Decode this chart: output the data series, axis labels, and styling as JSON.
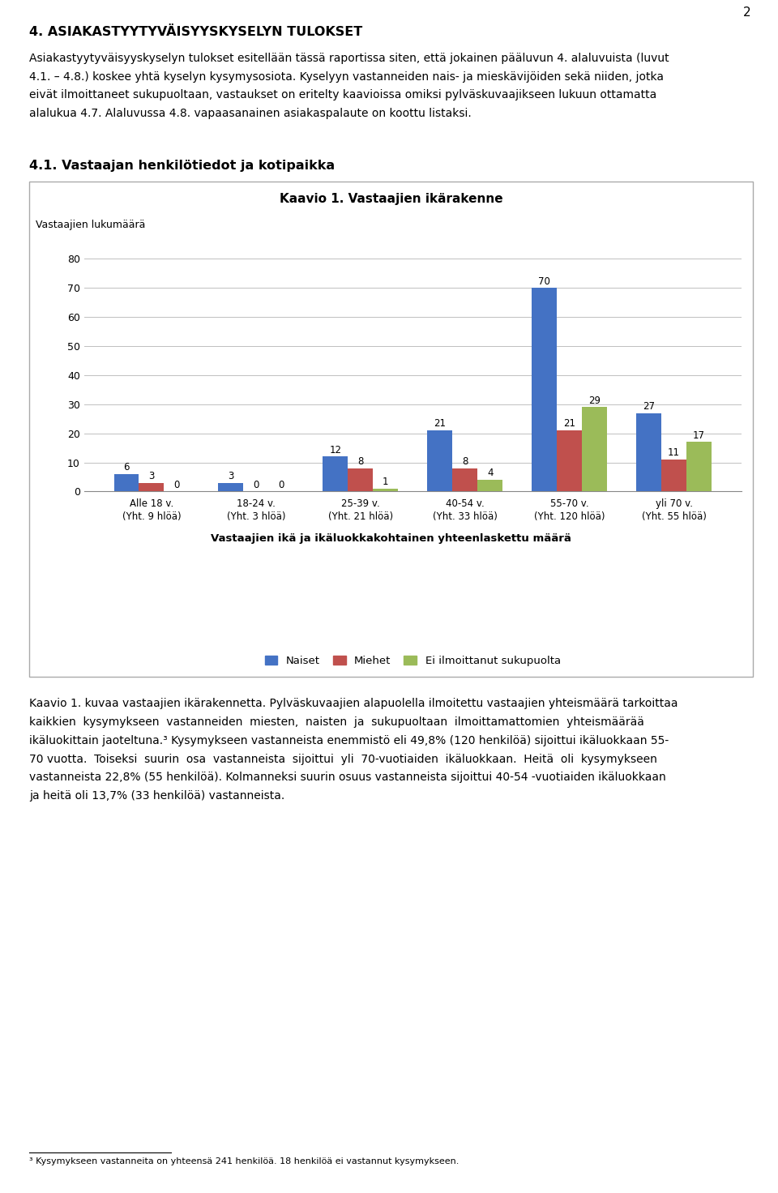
{
  "page_number": "2",
  "heading1": "4. ASIAKASTYYTYVÄISYYSKYSELYN TULOKSET",
  "para1_lines": [
    "Asiakastyytyväisyyskyselyn tulokset esitellään tässä raportissa siten, että jokainen pääluvun 4. alaluvuista (luvut",
    "4.1. – 4.8.) koskee yhtä kyselyn kysymysosiota. Kyselyyn vastanneiden nais- ja mieskävijöiden sekä niiden, jotka",
    "eivät ilmoittaneet sukupuoltaan, vastaukset on eritelty kaavioissa omiksi pylväskuvaajikseen lukuun ottamatta",
    "alalukua 4.7. Alaluvussa 4.8. vapaasanainen asiakaspalaute on koottu listaksi."
  ],
  "heading2": "4.1. Vastaajan henkilötiedot ja kotipaikka",
  "chart_title": "Kaavio 1. Vastaajien ikärakenne",
  "ylabel": "Vastaajien lukumäärä",
  "xlabel_bold": "Vastaajien ikä ja ikäluokkakohtainen yhteenlaskettu määrä",
  "categories": [
    "Alle 18 v.\n(Yht. 9 hlöä)",
    "18-24 v.\n(Yht. 3 hlöä)",
    "25-39 v.\n(Yht. 21 hlöä)",
    "40-54 v.\n(Yht. 33 hlöä)",
    "55-70 v.\n(Yht. 120 hlöä)",
    "yli 70 v.\n(Yht. 55 hlöä)"
  ],
  "naiset": [
    6,
    3,
    12,
    21,
    70,
    27
  ],
  "miehet": [
    3,
    0,
    8,
    8,
    21,
    11
  ],
  "ei_ilmoittanut": [
    0,
    0,
    1,
    4,
    29,
    17
  ],
  "bar_color_naiset": "#4472C4",
  "bar_color_miehet": "#C0504D",
  "bar_color_ei": "#9BBB59",
  "legend_naiset": "Naiset",
  "legend_miehet": "Miehet",
  "legend_ei": "Ei ilmoittanut sukupuolta",
  "ylim": [
    0,
    80
  ],
  "yticks": [
    0,
    10,
    20,
    30,
    40,
    50,
    60,
    70,
    80
  ],
  "caption_lines": [
    "Kaavio 1. kuvaa vastaajien ikärakennetta. Pylväskuvaajien alapuolella ilmoitettu vastaajien yhteismäärä tarkoittaa",
    "kaikkien  kysymykseen  vastanneiden  miesten,  naisten  ja  sukupuoltaan  ilmoittamattomien  yhteismäärää",
    "ikäluokittain jaoteltuna.³ Kysymykseen vastanneista enemmistö eli 49,8% (120 henkilöä) sijoittui ikäluokkaan 55-",
    "70 vuotta.  Toiseksi  suurin  osa  vastanneista  sijoittui  yli  70-vuotiaiden  ikäluokkaan.  Heitä  oli  kysymykseen",
    "vastanneista 22,8% (55 henkilöä). Kolmanneksi suurin osuus vastanneista sijoittui 40-54 -vuotiaiden ikäluokkaan",
    "ja heitä oli 13,7% (33 henkilöä) vastanneista."
  ],
  "footnote": "³ Kysymykseen vastanneita on yhteensä 241 henkilöä. 18 henkilöä ei vastannut kysymykseen.",
  "background": "#FFFFFF",
  "text_color": "#000000",
  "chart_border_color": "#AAAAAA",
  "grid_color": "#C0C0C0"
}
